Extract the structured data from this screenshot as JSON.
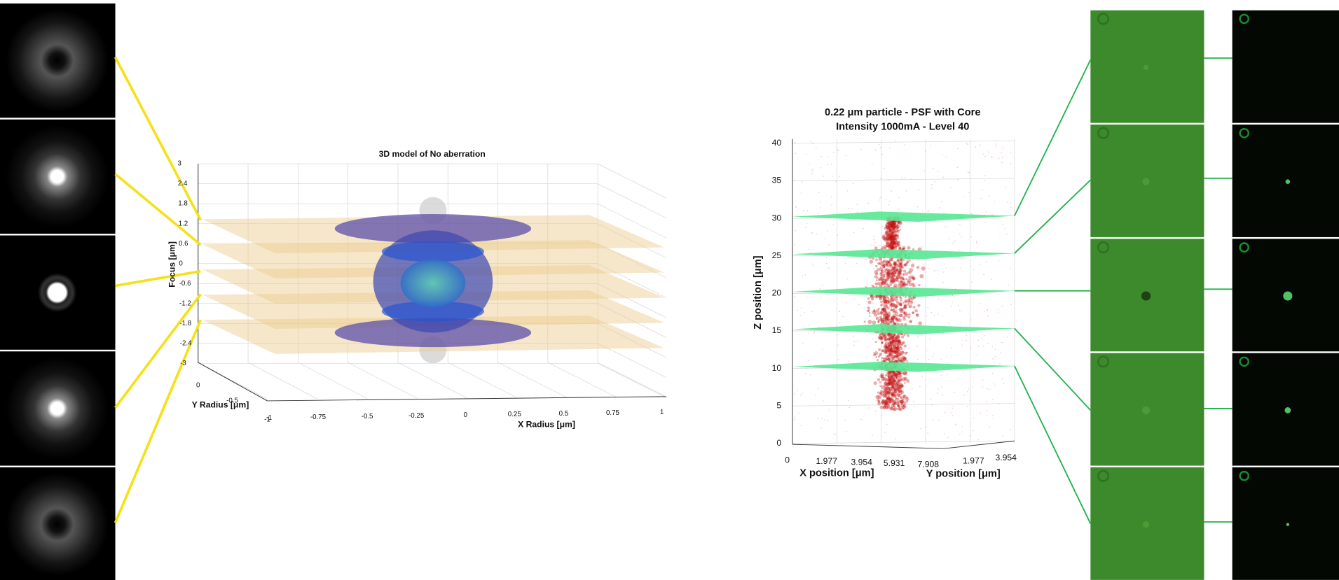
{
  "left_plot": {
    "title": "3D model of No aberration",
    "z_label": "Focus [μm]",
    "y_label": "Y Radius [μm]",
    "x_label": "X Radius [μm]",
    "z_ticks": [
      "3",
      "2.4",
      "1.8",
      "1.2",
      "0.6",
      "0",
      "-0.6",
      "-1.2",
      "-1.8",
      "-2.4",
      "-3"
    ],
    "y_ticks": [
      "0",
      "-0.5",
      "-1"
    ],
    "x_ticks": [
      "-1",
      "-0.75",
      "-0.5",
      "-0.25",
      "0",
      "0.25",
      "0.5",
      "0.75",
      "1"
    ]
  },
  "right_plot": {
    "title_lines": [
      "0.22 μm particle - PSF with Core",
      "Intensity 1000mA - Level 40"
    ],
    "z_label": "Z position [μm]",
    "x_label": "X position [μm]",
    "y_label": "Y position [μm]",
    "z_ticks": [
      "40",
      "35",
      "30",
      "25",
      "20",
      "15",
      "10",
      "5",
      "0"
    ],
    "x_ticks": [
      "0",
      "1.977",
      "3.954",
      "5.931",
      "7.908"
    ],
    "y_ticks": [
      "1.977",
      "3.954"
    ]
  }
}
